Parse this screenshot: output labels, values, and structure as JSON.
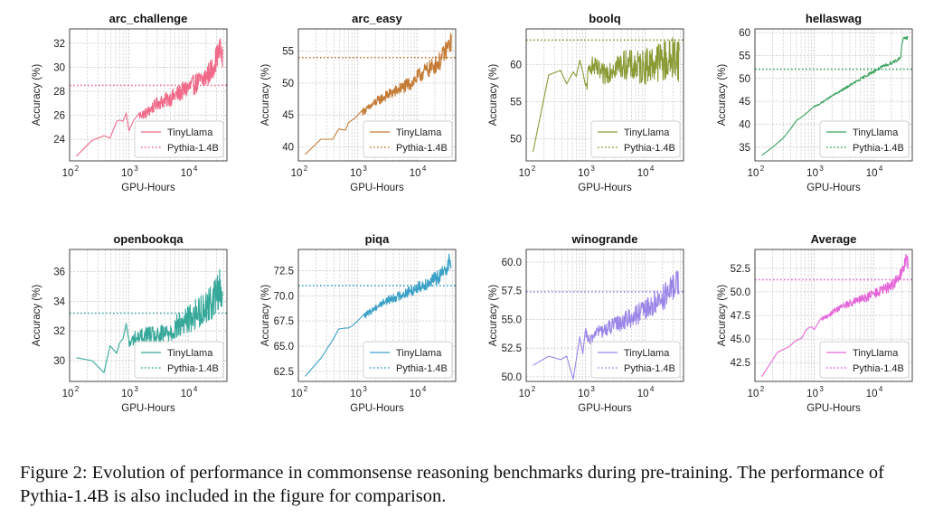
{
  "caption": "Figure 2: Evolution of performance in commonsense reasoning benchmarks during pre-training. The performance of Pythia-1.4B is also included in the figure for comparison.",
  "colors": {
    "arc_challenge": "#f06b8a",
    "arc_easy": "#c47b35",
    "boolq": "#8a9a35",
    "hellaswag": "#3aa35e",
    "openbookqa": "#36a89a",
    "piqa": "#3aa0c6",
    "winogrande": "#9b86e8",
    "average": "#e566d8"
  },
  "chart_data": [
    {
      "type": "line",
      "title": "arc_challenge",
      "xlabel": "GPU-Hours",
      "ylabel": "Accuracy (%)",
      "xscale": "log",
      "xlim": [
        100,
        45000
      ],
      "ylim": [
        22.2,
        33.2
      ],
      "yticks": [
        24,
        26,
        28,
        30,
        32
      ],
      "xticks": [
        {
          "value": 100,
          "label": "10",
          "exp": "2"
        },
        {
          "value": 1000,
          "label": "10",
          "exp": "3"
        },
        {
          "value": 10000,
          "label": "10",
          "exp": "4"
        }
      ],
      "grid": true,
      "legend": "lower-right",
      "color_key": "arc_challenge",
      "series": [
        {
          "name": "TinyLlama",
          "style": "solid",
          "x": [
            130,
            240,
            380,
            480,
            620,
            700,
            800,
            900,
            1000,
            1200,
            1500,
            2000,
            3000,
            5000,
            8000,
            12000,
            18000,
            25000,
            30000,
            35000,
            38000
          ],
          "y": [
            22.6,
            23.9,
            24.3,
            24.1,
            25.5,
            25.6,
            25.5,
            26.2,
            24.7,
            25.6,
            26.0,
            26.2,
            27.0,
            27.4,
            28.0,
            28.5,
            29.0,
            29.8,
            30.8,
            31.5,
            30.5
          ],
          "noise": 1.1,
          "noise_start": 1500
        },
        {
          "name": "Pythia-1.4B",
          "style": "dotted",
          "value": 28.5
        }
      ]
    },
    {
      "type": "line",
      "title": "arc_easy",
      "xlabel": "GPU-Hours",
      "ylabel": "Accuracy (%)",
      "xscale": "log",
      "xlim": [
        100,
        45000
      ],
      "ylim": [
        37.8,
        58.5
      ],
      "yticks": [
        40,
        45,
        50,
        55
      ],
      "xticks": [
        {
          "value": 100,
          "label": "10",
          "exp": "2"
        },
        {
          "value": 1000,
          "label": "10",
          "exp": "3"
        },
        {
          "value": 10000,
          "label": "10",
          "exp": "4"
        }
      ],
      "grid": true,
      "legend": "lower-right",
      "color_key": "arc_easy",
      "series": [
        {
          "name": "TinyLlama",
          "style": "solid",
          "x": [
            130,
            240,
            380,
            480,
            620,
            700,
            900,
            1200,
            1500,
            2000,
            3000,
            5000,
            8000,
            12000,
            18000,
            25000,
            30000,
            35000,
            38000
          ],
          "y": [
            38.8,
            41.2,
            41.2,
            42.8,
            42.6,
            43.8,
            44.5,
            45.5,
            46.0,
            47.0,
            48.0,
            49.0,
            50.0,
            51.5,
            52.5,
            53.5,
            55.0,
            56.0,
            56.5
          ],
          "noise": 1.6,
          "noise_start": 1200
        },
        {
          "name": "Pythia-1.4B",
          "style": "dotted",
          "value": 54.0
        }
      ]
    },
    {
      "type": "line",
      "title": "boolq",
      "xlabel": "GPU-Hours",
      "ylabel": "Accuracy (%)",
      "xscale": "log",
      "xlim": [
        100,
        45000
      ],
      "ylim": [
        47.0,
        64.8
      ],
      "yticks": [
        50,
        55,
        60
      ],
      "xticks": [
        {
          "value": 100,
          "label": "10",
          "exp": "2"
        },
        {
          "value": 1000,
          "label": "10",
          "exp": "3"
        },
        {
          "value": 10000,
          "label": "10",
          "exp": "4"
        }
      ],
      "grid": true,
      "legend": "lower-right",
      "color_key": "boolq",
      "series": [
        {
          "name": "TinyLlama",
          "style": "solid",
          "x": [
            130,
            240,
            380,
            480,
            620,
            700,
            800,
            900,
            1000,
            1200,
            1500,
            2000,
            3000,
            5000,
            8000,
            12000,
            18000,
            25000,
            30000,
            35000,
            38000
          ],
          "y": [
            48.2,
            58.6,
            59.2,
            57.4,
            59.0,
            58.4,
            60.6,
            59.0,
            56.5,
            60.0,
            59.5,
            58.5,
            59.8,
            60.0,
            59.5,
            60.0,
            60.5,
            60.5,
            61.0,
            61.5,
            60.5
          ],
          "noise": 3.2,
          "noise_start": 1000
        },
        {
          "name": "Pythia-1.4B",
          "style": "dotted",
          "value": 63.3
        }
      ]
    },
    {
      "type": "line",
      "title": "hellaswag",
      "xlabel": "GPU-Hours",
      "ylabel": "Accuracy (%)",
      "xscale": "log",
      "xlim": [
        100,
        45000
      ],
      "ylim": [
        32.0,
        60.8
      ],
      "yticks": [
        35,
        40,
        45,
        50,
        55,
        60
      ],
      "xticks": [
        {
          "value": 100,
          "label": "10",
          "exp": "2"
        },
        {
          "value": 1000,
          "label": "10",
          "exp": "3"
        },
        {
          "value": 10000,
          "label": "10",
          "exp": "4"
        }
      ],
      "grid": true,
      "legend": "lower-right",
      "color_key": "hellaswag",
      "series": [
        {
          "name": "TinyLlama",
          "style": "solid",
          "x": [
            130,
            200,
            300,
            400,
            500,
            650,
            800,
            1000,
            1300,
            1700,
            2200,
            3000,
            4000,
            5500,
            7500,
            10000,
            14000,
            19000,
            25000,
            29000,
            30000,
            32000,
            35000,
            38000
          ],
          "y": [
            33.2,
            35.0,
            37.0,
            39.0,
            40.8,
            41.8,
            42.8,
            43.8,
            44.6,
            45.6,
            46.5,
            47.5,
            48.5,
            49.5,
            50.6,
            51.5,
            52.5,
            53.3,
            54.0,
            54.8,
            57.5,
            58.5,
            58.8,
            59.0
          ],
          "noise": 0.45,
          "noise_start": 1000
        },
        {
          "name": "Pythia-1.4B",
          "style": "dotted",
          "value": 52.0
        }
      ]
    },
    {
      "type": "line",
      "title": "openbookqa",
      "xlabel": "GPU-Hours",
      "ylabel": "Accuracy (%)",
      "xscale": "log",
      "xlim": [
        100,
        45000
      ],
      "ylim": [
        28.6,
        37.5
      ],
      "yticks": [
        30,
        32,
        34,
        36
      ],
      "xticks": [
        {
          "value": 100,
          "label": "10",
          "exp": "2"
        },
        {
          "value": 1000,
          "label": "10",
          "exp": "3"
        },
        {
          "value": 10000,
          "label": "10",
          "exp": "4"
        }
      ],
      "grid": true,
      "legend": "lower-right",
      "color_key": "openbookqa",
      "series": [
        {
          "name": "TinyLlama",
          "style": "solid",
          "x": [
            130,
            240,
            380,
            480,
            620,
            700,
            800,
            900,
            1000,
            1200,
            1500,
            2000,
            3000,
            5000,
            8000,
            12000,
            18000,
            25000,
            30000,
            35000,
            38000
          ],
          "y": [
            30.2,
            30.0,
            29.2,
            31.0,
            30.5,
            31.2,
            31.5,
            32.5,
            31.0,
            31.5,
            31.5,
            31.8,
            31.5,
            32.0,
            32.5,
            33.0,
            33.5,
            34.0,
            34.5,
            35.0,
            34.5
          ],
          "noise": 1.3,
          "noise_start": 1000
        },
        {
          "name": "Pythia-1.4B",
          "style": "dotted",
          "value": 33.2
        }
      ]
    },
    {
      "type": "line",
      "title": "piqa",
      "xlabel": "GPU-Hours",
      "ylabel": "Accuracy (%)",
      "xscale": "log",
      "xlim": [
        100,
        45000
      ],
      "ylim": [
        61.5,
        74.6
      ],
      "yticks": [
        62.5,
        65.0,
        67.5,
        70.0,
        72.5
      ],
      "xticks": [
        {
          "value": 100,
          "label": "10",
          "exp": "2"
        },
        {
          "value": 1000,
          "label": "10",
          "exp": "3"
        },
        {
          "value": 10000,
          "label": "10",
          "exp": "4"
        }
      ],
      "grid": true,
      "legend": "lower-right",
      "color_key": "piqa",
      "series": [
        {
          "name": "TinyLlama",
          "style": "solid",
          "x": [
            130,
            240,
            380,
            480,
            620,
            700,
            800,
            1000,
            1300,
            1700,
            2200,
            3000,
            5000,
            8000,
            12000,
            18000,
            25000,
            30000,
            35000,
            38000
          ],
          "y": [
            62.0,
            63.8,
            65.6,
            66.7,
            66.8,
            66.8,
            67.0,
            67.5,
            68.0,
            68.5,
            69.0,
            69.5,
            70.0,
            70.5,
            71.0,
            71.5,
            72.0,
            72.5,
            73.5,
            73.2
          ],
          "noise": 0.8,
          "noise_start": 1300
        },
        {
          "name": "Pythia-1.4B",
          "style": "dotted",
          "value": 71.0
        }
      ]
    },
    {
      "type": "line",
      "title": "winogrande",
      "xlabel": "GPU-Hours",
      "ylabel": "Accuracy (%)",
      "xscale": "log",
      "xlim": [
        100,
        45000
      ],
      "ylim": [
        49.6,
        61.1
      ],
      "yticks": [
        50.0,
        52.5,
        55.0,
        57.5,
        60.0
      ],
      "xticks": [
        {
          "value": 100,
          "label": "10",
          "exp": "2"
        },
        {
          "value": 1000,
          "label": "10",
          "exp": "3"
        },
        {
          "value": 10000,
          "label": "10",
          "exp": "4"
        }
      ],
      "grid": true,
      "legend": "lower-right",
      "color_key": "winogrande",
      "series": [
        {
          "name": "TinyLlama",
          "style": "solid",
          "x": [
            130,
            240,
            380,
            480,
            620,
            700,
            800,
            900,
            1000,
            1200,
            1500,
            2000,
            3000,
            5000,
            8000,
            12000,
            18000,
            25000,
            30000,
            35000,
            38000
          ],
          "y": [
            51.0,
            51.8,
            51.5,
            51.8,
            49.8,
            51.5,
            53.5,
            52.0,
            53.8,
            53.0,
            54.0,
            54.0,
            54.5,
            55.0,
            55.5,
            56.0,
            56.8,
            57.2,
            57.8,
            58.5,
            58.0
          ],
          "noise": 1.3,
          "noise_start": 1000
        },
        {
          "name": "Pythia-1.4B",
          "style": "dotted",
          "value": 57.4
        }
      ]
    },
    {
      "type": "line",
      "title": "Average",
      "xlabel": "GPU-Hours",
      "ylabel": "Accuracy (%)",
      "xscale": "log",
      "xlim": [
        100,
        45000
      ],
      "ylim": [
        40.5,
        54.5
      ],
      "yticks": [
        42.5,
        45.0,
        47.5,
        50.0,
        52.5
      ],
      "xticks": [
        {
          "value": 100,
          "label": "10",
          "exp": "2"
        },
        {
          "value": 1000,
          "label": "10",
          "exp": "3"
        },
        {
          "value": 10000,
          "label": "10",
          "exp": "4"
        }
      ],
      "grid": true,
      "legend": "lower-right",
      "color_key": "average",
      "series": [
        {
          "name": "TinyLlama",
          "style": "solid",
          "x": [
            130,
            200,
            240,
            380,
            480,
            620,
            700,
            800,
            900,
            1000,
            1300,
            1700,
            2200,
            3000,
            5000,
            8000,
            12000,
            18000,
            25000,
            30000,
            35000,
            38000
          ],
          "y": [
            41.0,
            42.8,
            43.6,
            44.2,
            44.8,
            45.1,
            45.8,
            46.2,
            46.3,
            46.0,
            47.0,
            47.5,
            48.0,
            48.5,
            49.0,
            49.5,
            50.0,
            50.5,
            51.2,
            52.0,
            53.5,
            53.0
          ],
          "noise": 0.7,
          "noise_start": 1300
        },
        {
          "name": "Pythia-1.4B",
          "style": "dotted",
          "value": 51.3
        }
      ]
    }
  ]
}
